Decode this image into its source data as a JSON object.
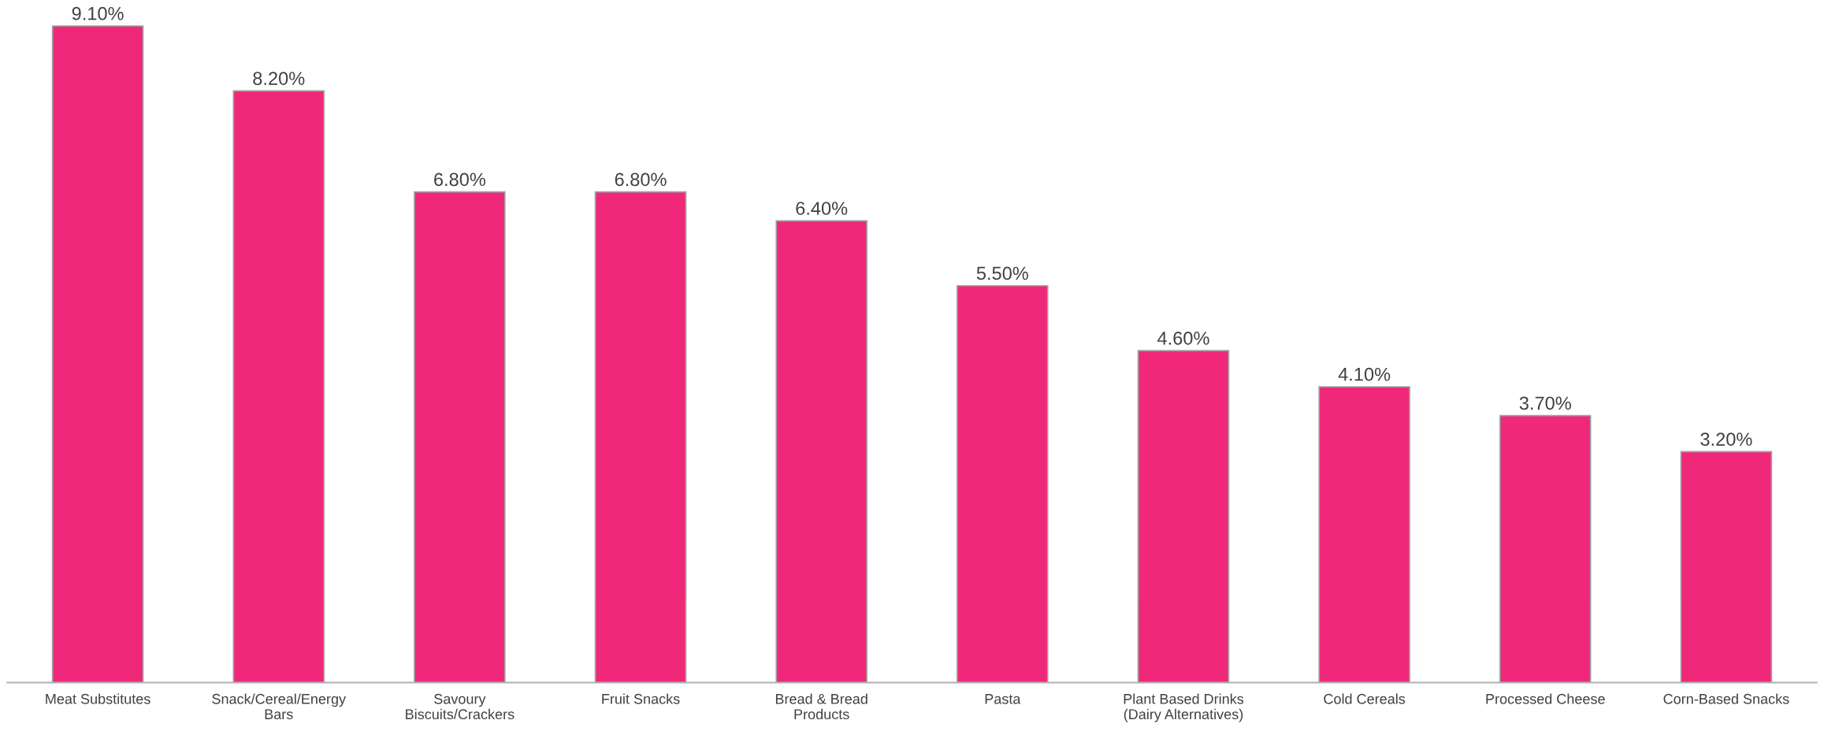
{
  "chart_data": {
    "type": "bar",
    "categories": [
      "Meat Substitutes",
      "Snack/Cereal/Energy\nBars",
      "Savoury\nBiscuits/Crackers",
      "Fruit Snacks",
      "Bread & Bread\nProducts",
      "Pasta",
      "Plant Based Drinks\n(Dairy Alternatives)",
      "Cold Cereals",
      "Processed Cheese",
      "Corn-Based Snacks"
    ],
    "values": [
      9.1,
      8.2,
      6.8,
      6.8,
      6.4,
      5.5,
      4.6,
      4.1,
      3.7,
      3.2
    ],
    "value_labels": [
      "9.10%",
      "8.20%",
      "6.80%",
      "6.80%",
      "6.40%",
      "5.50%",
      "4.60%",
      "4.10%",
      "3.70%",
      "3.20%"
    ],
    "color": "#f0287a",
    "ylim": [
      0,
      9.15
    ],
    "tick_labels": "x",
    "grid": false,
    "legend": false
  }
}
